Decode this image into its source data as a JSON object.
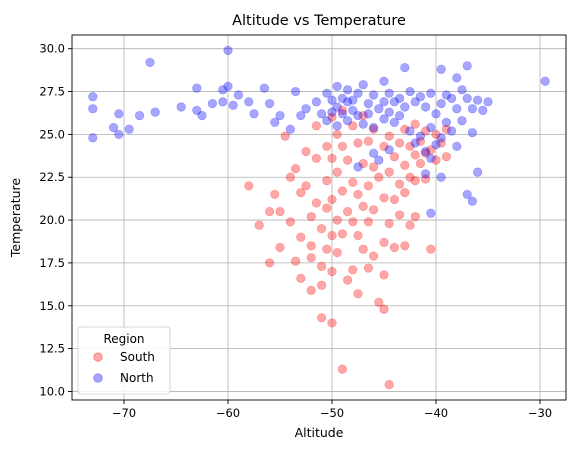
{
  "chart_data": {
    "type": "scatter",
    "title": "Altitude vs Temperature",
    "xlabel": "Altitude",
    "ylabel": "Temperature",
    "xlim": [
      -75,
      -27.5
    ],
    "ylim": [
      9.5,
      30.8
    ],
    "xticks": [
      -70,
      -60,
      -50,
      -40,
      -30
    ],
    "yticks": [
      10.0,
      12.5,
      15.0,
      17.5,
      20.0,
      22.5,
      25.0,
      27.5,
      30.0
    ],
    "xtick_labels": [
      "−70",
      "−60",
      "−50",
      "−40",
      "−30"
    ],
    "ytick_labels": [
      "10.0",
      "12.5",
      "15.0",
      "17.5",
      "20.0",
      "22.5",
      "25.0",
      "27.5",
      "30.0"
    ],
    "grid": true,
    "legend": {
      "title": "Region",
      "placement": "lower-left",
      "entries": [
        "South",
        "North"
      ]
    },
    "series": [
      {
        "name": "South",
        "color": "#ff0000",
        "alpha": 0.35,
        "points": [
          [
            -58,
            22
          ],
          [
            -57,
            19.7
          ],
          [
            -56,
            20.5
          ],
          [
            -56,
            17.5
          ],
          [
            -55.5,
            21.5
          ],
          [
            -55,
            18.4
          ],
          [
            -55,
            20.5
          ],
          [
            -54.5,
            24.9
          ],
          [
            -54,
            22.5
          ],
          [
            -54,
            19.9
          ],
          [
            -53.5,
            23
          ],
          [
            -53.5,
            17.6
          ],
          [
            -53,
            21.6
          ],
          [
            -53,
            19
          ],
          [
            -53,
            16.6
          ],
          [
            -52.5,
            24
          ],
          [
            -52.5,
            22
          ],
          [
            -52,
            20.2
          ],
          [
            -52,
            18.5
          ],
          [
            -52,
            17.8
          ],
          [
            -51.5,
            25.5
          ],
          [
            -51.5,
            23.6
          ],
          [
            -51.5,
            21
          ],
          [
            -51,
            19.5
          ],
          [
            -51,
            17.3
          ],
          [
            -51,
            16.2
          ],
          [
            -50.5,
            24.3
          ],
          [
            -50.5,
            22.3
          ],
          [
            -50.5,
            20.7
          ],
          [
            -50.5,
            18.3
          ],
          [
            -50,
            26
          ],
          [
            -50,
            23.6
          ],
          [
            -50,
            21.2
          ],
          [
            -50,
            19.1
          ],
          [
            -50,
            17
          ],
          [
            -50,
            14
          ],
          [
            -49.5,
            25
          ],
          [
            -49.5,
            22.8
          ],
          [
            -49.5,
            20
          ],
          [
            -49.5,
            18.1
          ],
          [
            -49,
            26.4
          ],
          [
            -49,
            24.3
          ],
          [
            -49,
            21.7
          ],
          [
            -49,
            19.2
          ],
          [
            -49,
            11.3
          ],
          [
            -48.5,
            23.5
          ],
          [
            -48.5,
            20.5
          ],
          [
            -48,
            25.5
          ],
          [
            -48,
            22.2
          ],
          [
            -48,
            19.9
          ],
          [
            -48,
            17.1
          ],
          [
            -47.5,
            24.5
          ],
          [
            -47.5,
            21.5
          ],
          [
            -47.5,
            19.1
          ],
          [
            -47,
            26.1
          ],
          [
            -47,
            23.3
          ],
          [
            -47,
            20.8
          ],
          [
            -47,
            18.3
          ],
          [
            -46.5,
            24.6
          ],
          [
            -46.5,
            22
          ],
          [
            -46.5,
            19.9
          ],
          [
            -46,
            25.3
          ],
          [
            -46,
            23.1
          ],
          [
            -46,
            20.6
          ],
          [
            -46,
            17.9
          ],
          [
            -45.5,
            15.2
          ],
          [
            -45.5,
            22.5
          ],
          [
            -45,
            24.3
          ],
          [
            -45,
            21.3
          ],
          [
            -45,
            18.7
          ],
          [
            -45,
            14.8
          ],
          [
            -44.5,
            24.9
          ],
          [
            -44.5,
            22.8
          ],
          [
            -44.5,
            19.8
          ],
          [
            -44.5,
            10.4
          ],
          [
            -44,
            23.7
          ],
          [
            -44,
            21.2
          ],
          [
            -44,
            18.4
          ],
          [
            -43.5,
            24.5
          ],
          [
            -43.5,
            22.1
          ],
          [
            -43.5,
            20.3
          ],
          [
            -43,
            25.3
          ],
          [
            -43,
            23.2
          ],
          [
            -43,
            21.6
          ],
          [
            -43,
            18.5
          ],
          [
            -42.5,
            24.3
          ],
          [
            -42.5,
            22.5
          ],
          [
            -42.5,
            19.7
          ],
          [
            -42,
            25.6
          ],
          [
            -42,
            23.8
          ],
          [
            -42,
            22.3
          ],
          [
            -42,
            20.2
          ],
          [
            -41.5,
            24.6
          ],
          [
            -41.5,
            23.3
          ],
          [
            -41,
            25.2
          ],
          [
            -41,
            23.9
          ],
          [
            -41,
            22.4
          ],
          [
            -40.5,
            24.1
          ],
          [
            -40.5,
            18.3
          ],
          [
            -40,
            25
          ],
          [
            -40,
            23.5
          ],
          [
            -39.5,
            24.5
          ],
          [
            -39,
            25.3
          ],
          [
            -39,
            23.7
          ],
          [
            -52,
            15.9
          ],
          [
            -51,
            14.3
          ],
          [
            -48.5,
            16.5
          ],
          [
            -47.5,
            15.7
          ],
          [
            -46.5,
            17.2
          ],
          [
            -45,
            16.8
          ]
        ]
      },
      {
        "name": "North",
        "color": "#0000ff",
        "alpha": 0.35,
        "points": [
          [
            -73,
            27.2
          ],
          [
            -73,
            26.5
          ],
          [
            -73,
            24.8
          ],
          [
            -71,
            25.4
          ],
          [
            -70.5,
            26.2
          ],
          [
            -70.5,
            25
          ],
          [
            -69.5,
            25.3
          ],
          [
            -68.5,
            26.1
          ],
          [
            -67.5,
            29.2
          ],
          [
            -67,
            26.3
          ],
          [
            -64.5,
            26.6
          ],
          [
            -63,
            27.7
          ],
          [
            -63,
            26.4
          ],
          [
            -62.5,
            26.1
          ],
          [
            -61.5,
            26.8
          ],
          [
            -60.5,
            27.6
          ],
          [
            -60.5,
            26.9
          ],
          [
            -60,
            29.9
          ],
          [
            -60,
            27.8
          ],
          [
            -59.5,
            26.7
          ],
          [
            -59,
            27.3
          ],
          [
            -58,
            26.9
          ],
          [
            -57.5,
            26.2
          ],
          [
            -56.5,
            27.7
          ],
          [
            -56,
            26.8
          ],
          [
            -55.5,
            25.7
          ],
          [
            -55,
            26.1
          ],
          [
            -54,
            25.3
          ],
          [
            -53.5,
            27.5
          ],
          [
            -53,
            26.1
          ],
          [
            -52.5,
            26.5
          ],
          [
            -51.5,
            26.9
          ],
          [
            -51,
            26.2
          ],
          [
            -50.5,
            27.4
          ],
          [
            -50.5,
            25.8
          ],
          [
            -50,
            27
          ],
          [
            -50,
            26.3
          ],
          [
            -49.5,
            27.8
          ],
          [
            -49.5,
            26.6
          ],
          [
            -49.5,
            25.5
          ],
          [
            -49,
            27.1
          ],
          [
            -49,
            26.2
          ],
          [
            -48.5,
            27.6
          ],
          [
            -48.5,
            26.9
          ],
          [
            -48.5,
            25.8
          ],
          [
            -48,
            27
          ],
          [
            -48,
            26.4
          ],
          [
            -47.5,
            27.4
          ],
          [
            -47.5,
            26.1
          ],
          [
            -47,
            25.6
          ],
          [
            -47,
            27.9
          ],
          [
            -46.5,
            26.8
          ],
          [
            -46.5,
            26.2
          ],
          [
            -46,
            27.3
          ],
          [
            -46,
            25.4
          ],
          [
            -45.5,
            26.5
          ],
          [
            -45,
            28.1
          ],
          [
            -45,
            26.9
          ],
          [
            -45,
            25.9
          ],
          [
            -44.5,
            27.4
          ],
          [
            -44.5,
            26.3
          ],
          [
            -44,
            26.9
          ],
          [
            -44,
            25.7
          ],
          [
            -43.5,
            27.1
          ],
          [
            -43.5,
            26.1
          ],
          [
            -43,
            28.9
          ],
          [
            -43,
            26.6
          ],
          [
            -42.5,
            27.5
          ],
          [
            -42.5,
            25.2
          ],
          [
            -42,
            26.9
          ],
          [
            -42,
            24.5
          ],
          [
            -41.5,
            27.2
          ],
          [
            -41.5,
            24.9
          ],
          [
            -41,
            26.6
          ],
          [
            -41,
            24
          ],
          [
            -40.5,
            27.4
          ],
          [
            -40.5,
            25.4
          ],
          [
            -40.5,
            23.6
          ],
          [
            -40,
            26.2
          ],
          [
            -40,
            24.4
          ],
          [
            -39.5,
            28.8
          ],
          [
            -39.5,
            26.8
          ],
          [
            -39.5,
            24.8
          ],
          [
            -39,
            27.3
          ],
          [
            -39,
            25.7
          ],
          [
            -38.5,
            27.1
          ],
          [
            -38.5,
            25.2
          ],
          [
            -38,
            28.3
          ],
          [
            -38,
            26.5
          ],
          [
            -38,
            24.3
          ],
          [
            -37.5,
            27.6
          ],
          [
            -37.5,
            25.8
          ],
          [
            -37,
            29
          ],
          [
            -37,
            27.1
          ],
          [
            -36.5,
            26.5
          ],
          [
            -36.5,
            25.1
          ],
          [
            -36,
            27
          ],
          [
            -36,
            22.8
          ],
          [
            -35.5,
            26.4
          ],
          [
            -35,
            26.9
          ],
          [
            -29.5,
            28.1
          ],
          [
            -37,
            21.5
          ],
          [
            -36.5,
            21.1
          ],
          [
            -40.5,
            20.4
          ],
          [
            -45.5,
            23.5
          ],
          [
            -44.5,
            24.1
          ],
          [
            -46,
            23.9
          ],
          [
            -47.5,
            23.1
          ],
          [
            -39.5,
            22.5
          ],
          [
            -41,
            22.7
          ]
        ]
      }
    ]
  }
}
